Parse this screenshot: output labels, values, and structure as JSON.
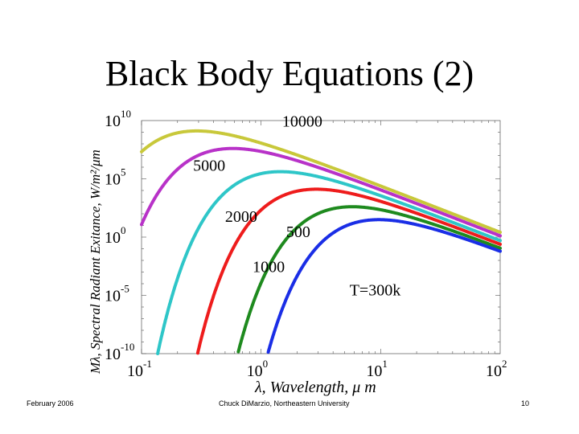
{
  "slide": {
    "title": "Black Body Equations (2)",
    "footer_left": "February 2006",
    "footer_center": "Chuck DiMarzio, Northeastern University",
    "footer_right": "10"
  },
  "chart_data": {
    "type": "line",
    "title": "Black Body Equations (2)",
    "xscale": "log",
    "yscale": "log",
    "xlim": [
      0.1,
      100
    ],
    "ylim": [
      1e-10,
      10000000000.0
    ],
    "xlabel": "λ, Wavelength, μ m",
    "ylabel": "Mλ, Spectral Radiant Exitance, W/m²/μm",
    "xticks": [
      {
        "value": 0.1,
        "base": "10",
        "exp": "-1"
      },
      {
        "value": 1,
        "base": "10",
        "exp": "0"
      },
      {
        "value": 10,
        "base": "10",
        "exp": "1"
      },
      {
        "value": 100,
        "base": "10",
        "exp": "2"
      }
    ],
    "yticks": [
      {
        "value": 10000000000.0,
        "base": "10",
        "exp": "10"
      },
      {
        "value": 100000.0,
        "base": "10",
        "exp": "5"
      },
      {
        "value": 1,
        "base": "10",
        "exp": "0"
      },
      {
        "value": 1e-05,
        "base": "10",
        "exp": "-5"
      },
      {
        "value": 1e-10,
        "base": "10",
        "exp": "-10"
      }
    ],
    "series": [
      {
        "name": "10000",
        "temperature_K": 10000,
        "color": "#c8c83a"
      },
      {
        "name": "5000",
        "temperature_K": 5000,
        "color": "#b832c8"
      },
      {
        "name": "2000",
        "temperature_K": 2000,
        "color": "#2ec6c8"
      },
      {
        "name": "1000",
        "temperature_K": 1000,
        "color": "#ee1c1c"
      },
      {
        "name": "500",
        "temperature_K": 500,
        "color": "#1e8a1e"
      },
      {
        "name": "T=300k",
        "temperature_K": 300,
        "color": "#1a2ee6"
      }
    ],
    "annotations": [
      {
        "text": "10000",
        "x": 1.5,
        "y": 3000000000.0
      },
      {
        "text": "5000",
        "x": 0.27,
        "y": 500000.0
      },
      {
        "text": "2000",
        "x": 0.5,
        "y": 20.0
      },
      {
        "text": "500",
        "x": 1.62,
        "y": 1.0
      },
      {
        "text": "1000",
        "x": 0.85,
        "y": 0.001
      },
      {
        "text": "T=300k",
        "x": 5.5,
        "y": 1e-05
      }
    ]
  }
}
